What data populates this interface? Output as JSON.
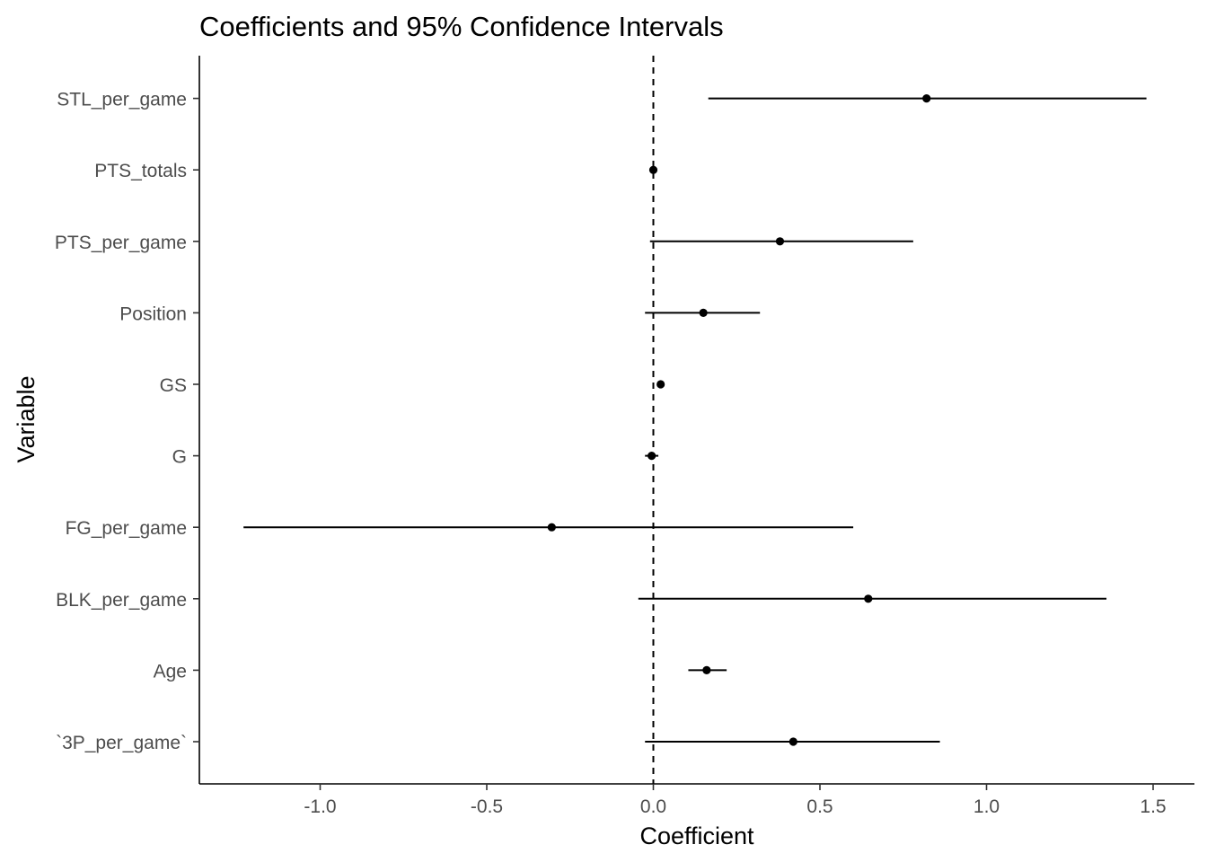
{
  "chart_data": {
    "type": "scatter",
    "title": "Coefficients and 95% Confidence Intervals",
    "xlabel": "Coefficient",
    "ylabel": "Variable",
    "xlim": [
      -1.35,
      1.55
    ],
    "x_ticks": [
      -1.0,
      -0.5,
      0.0,
      0.5,
      1.0,
      1.5
    ],
    "x_tick_labels": [
      "-1.0",
      "-0.5",
      "0.0",
      "0.5",
      "1.0",
      "1.5"
    ],
    "reference_line": {
      "x": 0,
      "style": "dashed"
    },
    "categories": [
      "`3P_per_game`",
      "Age",
      "BLK_per_game",
      "FG_per_game",
      "G",
      "GS",
      "Position",
      "PTS_per_game",
      "PTS_totals",
      "STL_per_game"
    ],
    "estimates": [
      0.42,
      0.16,
      0.645,
      -0.305,
      -0.005,
      0.022,
      0.15,
      0.38,
      0.0,
      0.82
    ],
    "ci_low": [
      -0.025,
      0.105,
      -0.045,
      -1.23,
      -0.025,
      0.012,
      -0.025,
      -0.01,
      -0.005,
      0.165
    ],
    "ci_high": [
      0.86,
      0.22,
      1.36,
      0.6,
      0.015,
      0.032,
      0.32,
      0.78,
      0.005,
      1.48
    ],
    "grid": false,
    "legend": "none"
  }
}
